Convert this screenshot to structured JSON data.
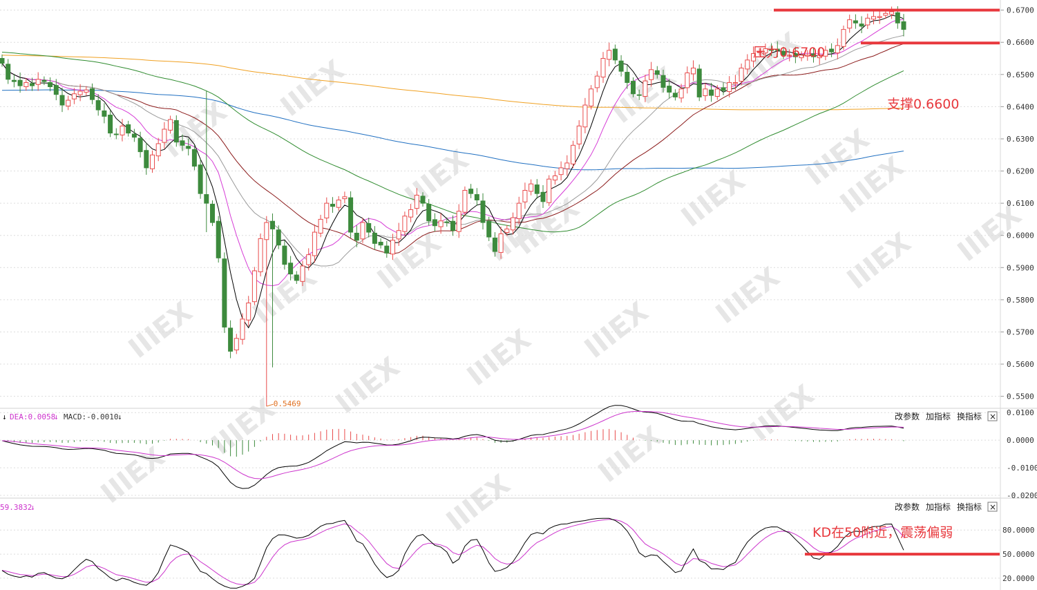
{
  "chart_data": {
    "type": "candlestick",
    "price_axis": {
      "ticks": [
        "0.6700",
        "0.6600",
        "0.6500",
        "0.6400",
        "0.6300",
        "0.6200",
        "0.6100",
        "0.6000",
        "0.5900",
        "0.5800",
        "0.5700",
        "0.5600",
        "0.5500"
      ],
      "range": [
        0.5467,
        0.6725
      ]
    },
    "low_marker": "0.5469",
    "annotations": {
      "resistance": "压力0.6700",
      "support": "支撑0.6600",
      "kd_note": "KD在50附近，震荡偏弱"
    },
    "levels": {
      "resistance": 0.67,
      "support": 0.66,
      "kd": 50
    },
    "closes": [
      0.6535,
      0.6485,
      0.6478,
      0.6465,
      0.6475,
      0.6465,
      0.6485,
      0.6478,
      0.6462,
      0.6438,
      0.6405,
      0.642,
      0.644,
      0.6448,
      0.6452,
      0.6422,
      0.639,
      0.637,
      0.6318,
      0.6315,
      0.634,
      0.6318,
      0.6305,
      0.626,
      0.621,
      0.625,
      0.6285,
      0.633,
      0.636,
      0.629,
      0.628,
      0.627,
      0.6215,
      0.613,
      0.61,
      0.604,
      0.593,
      0.5715,
      0.564,
      0.568,
      0.574,
      0.579,
      0.589,
      0.599,
      0.604,
      0.602,
      0.597,
      0.591,
      0.588,
      0.586,
      0.5905,
      0.594,
      0.601,
      0.605,
      0.61,
      0.609,
      0.611,
      0.612,
      0.601,
      0.5985,
      0.604,
      0.601,
      0.5975,
      0.597,
      0.5945,
      0.5985,
      0.6015,
      0.606,
      0.608,
      0.6125,
      0.61,
      0.6045,
      0.603,
      0.6045,
      0.604,
      0.6015,
      0.6075,
      0.614,
      0.613,
      0.611,
      0.604,
      0.5995,
      0.595,
      0.6005,
      0.602,
      0.6055,
      0.61,
      0.614,
      0.616,
      0.613,
      0.6105,
      0.6175,
      0.6185,
      0.621,
      0.6225,
      0.628,
      0.634,
      0.6405,
      0.6455,
      0.6495,
      0.655,
      0.6575,
      0.6545,
      0.651,
      0.6475,
      0.644,
      0.6435,
      0.648,
      0.6515,
      0.65,
      0.646,
      0.6445,
      0.643,
      0.6455,
      0.6505,
      0.652,
      0.643,
      0.6455,
      0.6435,
      0.6455,
      0.645,
      0.6475,
      0.6475,
      0.652,
      0.6545,
      0.6565,
      0.657,
      0.658,
      0.6575,
      0.6575,
      0.656,
      0.656,
      0.6555,
      0.656,
      0.656,
      0.6555,
      0.656,
      0.6575,
      0.657,
      0.659,
      0.664,
      0.667,
      0.666,
      0.665,
      0.6675,
      0.668,
      0.668,
      0.669,
      0.6695,
      0.666,
      0.664
    ],
    "ma_periods": [
      5,
      10,
      20,
      30,
      60,
      120,
      250
    ],
    "macd_header": {
      "dea": "DEA:0.0058",
      "macd": "MACD:-0.0010"
    },
    "macd_axis": {
      "ticks": [
        "0.0100",
        "0.0000",
        "-0.0100",
        "-0.0200"
      ],
      "range": [
        -0.0205,
        0.0108
      ]
    },
    "kd_header": "59.3832",
    "kd_axis": {
      "ticks": [
        "80.0000",
        "50.0000",
        "20.0000"
      ],
      "range": [
        7,
        100
      ]
    },
    "toolbar": [
      "改参数",
      "加指标",
      "换指标"
    ],
    "close_icon": "×"
  },
  "colors": {
    "up": "#e84b4b",
    "down": "#3d8a3d",
    "k": "#000000",
    "d": "#cc33cc",
    "dif": "#000000",
    "dea": "#cc33cc",
    "annotation": "#e8383d",
    "ma5": "#000000",
    "ma10": "#d63cd6",
    "ma20": "#999999",
    "ma30": "#8b1a1a",
    "ma60": "#2e8b2e",
    "ma120": "#1f6fc1",
    "ma250": "#f0a020"
  }
}
